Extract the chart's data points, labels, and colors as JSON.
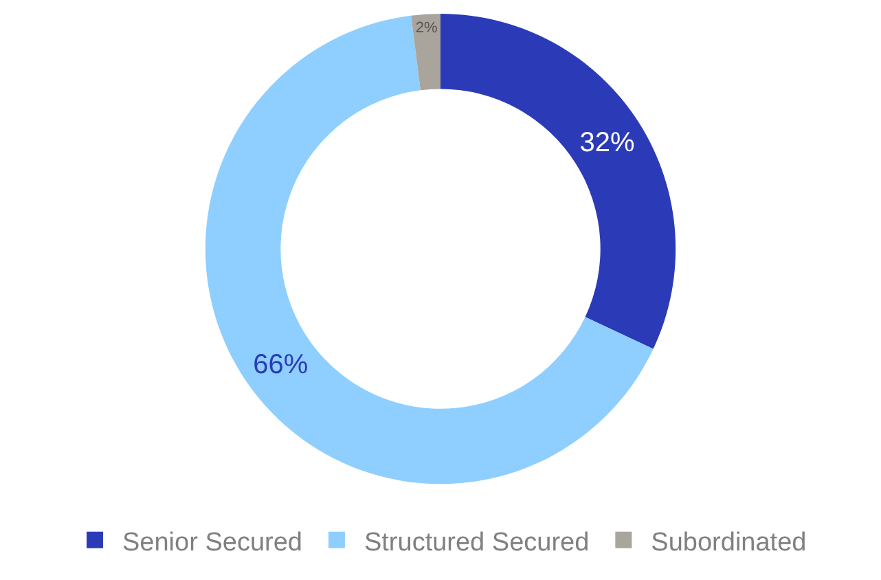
{
  "chart_data": {
    "type": "donut",
    "categories": [
      "Senior Secured",
      "Structured Secured",
      "Subordinated"
    ],
    "values": [
      32,
      66,
      2
    ],
    "colors": [
      "#2b3bb8",
      "#8ecfff",
      "#aaa59c"
    ],
    "value_labels": [
      "32%",
      "66%",
      "2%"
    ],
    "legend": "bottom"
  }
}
